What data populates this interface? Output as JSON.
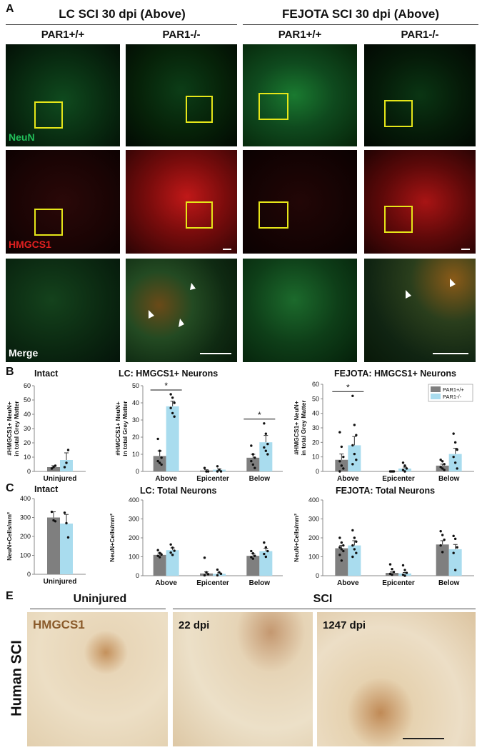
{
  "panelA": {
    "letter": "A",
    "groups": [
      "LC SCI 30 dpi (Above)",
      "FEJOTA SCI 30 dpi (Above)"
    ],
    "columns": [
      "PAR1+/+",
      "PAR1-/-",
      "PAR1+/+",
      "PAR1-/-"
    ],
    "rowLabels": [
      "NeuN",
      "HMGCS1",
      "Merge"
    ],
    "colors": {
      "neun": "#22c05a",
      "hmgcs1": "#e02020",
      "box": "#e6e619"
    }
  },
  "panelB": {
    "letter": "B"
  },
  "panelC": {
    "letter": "C"
  },
  "panelE": {
    "letter": "E",
    "headers": [
      "Uninjured",
      "SCI"
    ],
    "stainLabel": "HMGCS1",
    "timepoints": [
      "22 dpi",
      "1247 dpi"
    ],
    "sideLabel": "Human SCI"
  },
  "colors": {
    "par1_wt": "#7f7f7f",
    "par1_ko": "#a9dcee"
  },
  "chart_data": [
    {
      "id": "B-intact",
      "type": "bar",
      "title": "Intact",
      "ylabel": "#HMGCS1+ NeuN+ in total Grey Matter",
      "categories": [
        "Uninjured"
      ],
      "ylim": [
        0,
        60
      ],
      "yticks": [
        0,
        10,
        20,
        30,
        40,
        50,
        60
      ],
      "series": [
        {
          "values": [
            3
          ]
        },
        {
          "values": [
            8
          ]
        }
      ],
      "errors": [
        [
          1
        ],
        [
          5
        ]
      ],
      "points": [
        [
          [
            2,
            3,
            4
          ]
        ],
        [
          [
            3,
            6,
            15
          ]
        ]
      ]
    },
    {
      "id": "B-lc",
      "type": "bar",
      "title": "LC: HMGCS1+ Neurons",
      "ylabel": "#HMGCS1+ NeuN+ in total Grey Matter",
      "categories": [
        "Above",
        "Epicenter",
        "Below"
      ],
      "ylim": [
        0,
        50
      ],
      "yticks": [
        0,
        10,
        20,
        30,
        40,
        50
      ],
      "series": [
        {
          "values": [
            9,
            0.5,
            8
          ]
        },
        {
          "values": [
            38,
            1,
            17
          ]
        }
      ],
      "errors": [
        [
          3,
          0.5,
          2
        ],
        [
          3,
          0.5,
          4
        ]
      ],
      "points": [
        [
          [
            19,
            12,
            8,
            6,
            5,
            4
          ],
          [
            2,
            0,
            0
          ],
          [
            15,
            10,
            8,
            6,
            4,
            2
          ]
        ],
        [
          [
            45,
            43,
            40,
            37,
            34,
            32
          ],
          [
            3,
            1,
            0,
            0
          ],
          [
            28,
            22,
            16,
            14,
            12,
            10
          ]
        ]
      ],
      "significance": [
        {
          "text": "*",
          "categories": [
            "Above"
          ]
        },
        {
          "text": "*",
          "categories": [
            "Below"
          ]
        }
      ]
    },
    {
      "id": "B-fejota",
      "type": "bar",
      "title": "FEJOTA: HMGCS1+ Neurons",
      "ylabel": "#HMGCS1+ NeuN+ in total Grey Matter",
      "categories": [
        "Above",
        "Epicenter",
        "Below"
      ],
      "ylim": [
        0,
        60
      ],
      "yticks": [
        0,
        10,
        20,
        30,
        40,
        50,
        60
      ],
      "series": [
        {
          "name": "PAR1+/+",
          "values": [
            8,
            0.2,
            4
          ]
        },
        {
          "name": "PAR1-/-",
          "values": [
            18,
            2,
            12
          ]
        }
      ],
      "errors": [
        [
          4,
          0.2,
          1
        ],
        [
          6,
          1,
          4
        ]
      ],
      "points": [
        [
          [
            27,
            17,
            10,
            7,
            4,
            2,
            0
          ],
          [
            0,
            0,
            0
          ],
          [
            8,
            7,
            5,
            3,
            2,
            1
          ]
        ],
        [
          [
            52,
            32,
            25,
            18,
            12,
            8,
            5
          ],
          [
            6,
            4,
            2,
            1,
            0
          ],
          [
            26,
            20,
            15,
            10,
            6,
            2
          ]
        ]
      ],
      "legend": "top-right",
      "significance": [
        {
          "text": "*",
          "categories": [
            "Above"
          ]
        }
      ]
    },
    {
      "id": "C-intact",
      "type": "bar",
      "title": "Intact",
      "ylabel": "NeuN+Cells/mm²",
      "categories": [
        "Uninjured"
      ],
      "ylim": [
        0,
        400
      ],
      "yticks": [
        0,
        100,
        200,
        300,
        400
      ],
      "series": [
        {
          "values": [
            300
          ]
        },
        {
          "values": [
            268
          ]
        }
      ],
      "errors": [
        [
          30
        ],
        [
          48
        ]
      ],
      "points": [
        [
          [
            330,
            285,
            280
          ]
        ],
        [
          [
            325,
            270,
            195
          ]
        ]
      ]
    },
    {
      "id": "C-lc",
      "type": "bar",
      "title": "LC: Total Neurons",
      "ylabel": "NeuN+Cells/mm²",
      "categories": [
        "Above",
        "Epicenter",
        "Below"
      ],
      "ylim": [
        0,
        400
      ],
      "yticks": [
        0,
        100,
        200,
        300,
        400
      ],
      "series": [
        {
          "values": [
            110,
            12,
            105
          ]
        },
        {
          "values": [
            135,
            10,
            130
          ]
        }
      ],
      "errors": [
        [
          10,
          8,
          12
        ],
        [
          12,
          5,
          15
        ]
      ],
      "points": [
        [
          [
            135,
            120,
            112,
            105,
            98
          ],
          [
            95,
            18,
            8,
            2
          ],
          [
            130,
            118,
            105,
            98,
            90
          ]
        ],
        [
          [
            165,
            148,
            132,
            122,
            110
          ],
          [
            32,
            18,
            10,
            2
          ],
          [
            175,
            150,
            130,
            115,
            100
          ]
        ]
      ]
    },
    {
      "id": "C-fejota",
      "type": "bar",
      "title": "FEJOTA: Total Neurons",
      "ylabel": "NeuN+Cells/mm²",
      "categories": [
        "Above",
        "Epicenter",
        "Below"
      ],
      "ylim": [
        0,
        400
      ],
      "yticks": [
        0,
        100,
        200,
        300,
        400
      ],
      "series": [
        {
          "values": [
            145,
            15,
            165
          ]
        },
        {
          "values": [
            160,
            12,
            140
          ]
        }
      ],
      "errors": [
        [
          15,
          5,
          20
        ],
        [
          25,
          5,
          25
        ]
      ],
      "points": [
        [
          [
            200,
            175,
            160,
            150,
            140,
            130,
            110,
            80
          ],
          [
            60,
            35,
            20,
            10,
            5
          ],
          [
            235,
            215,
            190,
            160,
            125
          ]
        ],
        [
          [
            240,
            200,
            180,
            160,
            140,
            120,
            100
          ],
          [
            55,
            30,
            15,
            5,
            0
          ],
          [
            210,
            195,
            150,
            120,
            30
          ]
        ]
      ]
    }
  ]
}
